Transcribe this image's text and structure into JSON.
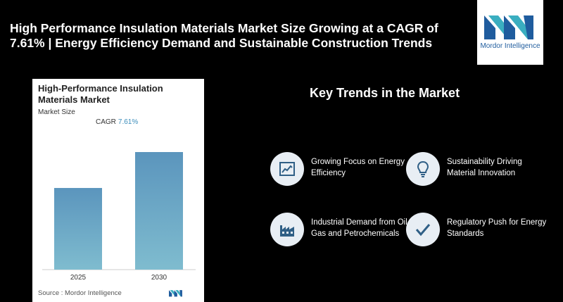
{
  "headline": "High Performance Insulation Materials Market Size Growing at a CAGR of 7.61% | Energy Efficiency Demand and Sustainable Construction Trends",
  "logo": {
    "text": "Mordor Intelligence"
  },
  "card": {
    "title": "High-Performance Insulation Materials Market",
    "subtitle": "Market Size",
    "cagr_label": "CAGR",
    "cagr_value": "7.61%",
    "source": "Source : Mordor Intelligence"
  },
  "chart_data": {
    "type": "bar",
    "categories": [
      "2025",
      "2030"
    ],
    "values": [
      1.0,
      1.44
    ],
    "title": "High-Performance Insulation Materials Market",
    "subtitle": "Market Size",
    "xlabel": "",
    "ylabel": "",
    "annotations": [
      "CAGR 7.61%"
    ],
    "grid": false,
    "legend": "none"
  },
  "trends": {
    "title": "Key Trends in the Market",
    "items": [
      {
        "label": "Growing Focus on Energy Efficiency",
        "icon": "line-chart-icon"
      },
      {
        "label": "Sustainability Driving Material Innovation",
        "icon": "lightbulb-icon"
      },
      {
        "label": "Industrial Demand from Oil & Gas and Petrochemicals",
        "icon": "factory-icon"
      },
      {
        "label": "Regulatory Push for Energy Standards",
        "icon": "checkmark-icon"
      }
    ]
  },
  "colors": {
    "bar_top": "#5b95bd",
    "bar_bottom": "#7fbccf",
    "icon_bg": "#e8eef4",
    "icon_fg": "#2f5f86"
  }
}
